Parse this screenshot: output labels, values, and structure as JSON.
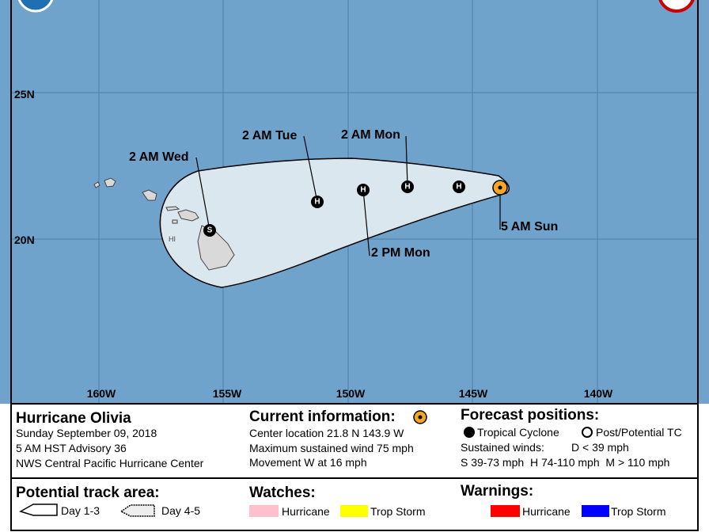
{
  "map": {
    "lat_labels": [
      "25N",
      "20N"
    ],
    "lon_labels": [
      "160W",
      "155W",
      "150W",
      "145W",
      "140W"
    ],
    "state_label": "HI"
  },
  "forecast_points": [
    {
      "label": "5 AM Sun"
    },
    {
      "marker": "H"
    },
    {
      "marker": "H",
      "label": "2 AM Mon"
    },
    {
      "marker": "H",
      "label": "2 PM Mon"
    },
    {
      "marker": "H",
      "label": "2 AM Tue"
    },
    {
      "marker": "S",
      "label": "2 AM Wed"
    }
  ],
  "info": {
    "storm": {
      "name": "Hurricane Olivia",
      "date": "Sunday September 09, 2018",
      "advisory": "5 AM HST Advisory 36",
      "center": "NWS Central Pacific Hurricane Center"
    },
    "current": {
      "title": "Current information:",
      "location": "Center location 21.8 N 143.9 W",
      "wind": "Maximum sustained wind 75 mph",
      "movement": "Movement W at 16 mph"
    },
    "forecast": {
      "title": "Forecast positions:",
      "tropical": "Tropical Cyclone",
      "post": "Post/Potential TC",
      "winds": "Sustained winds:",
      "d": "D < 39 mph",
      "scale": "S 39-73 mph  H 74-110 mph  M > 110 mph"
    },
    "track": {
      "title": "Potential track area:",
      "day13": "Day 1-3",
      "day45": "Day 4-5"
    },
    "watches": {
      "title": "Watches:",
      "hurricane": "Hurricane",
      "storm": "Trop Storm"
    },
    "warnings": {
      "title": "Warnings:",
      "hurricane": "Hurricane",
      "storm": "Trop Storm"
    }
  }
}
